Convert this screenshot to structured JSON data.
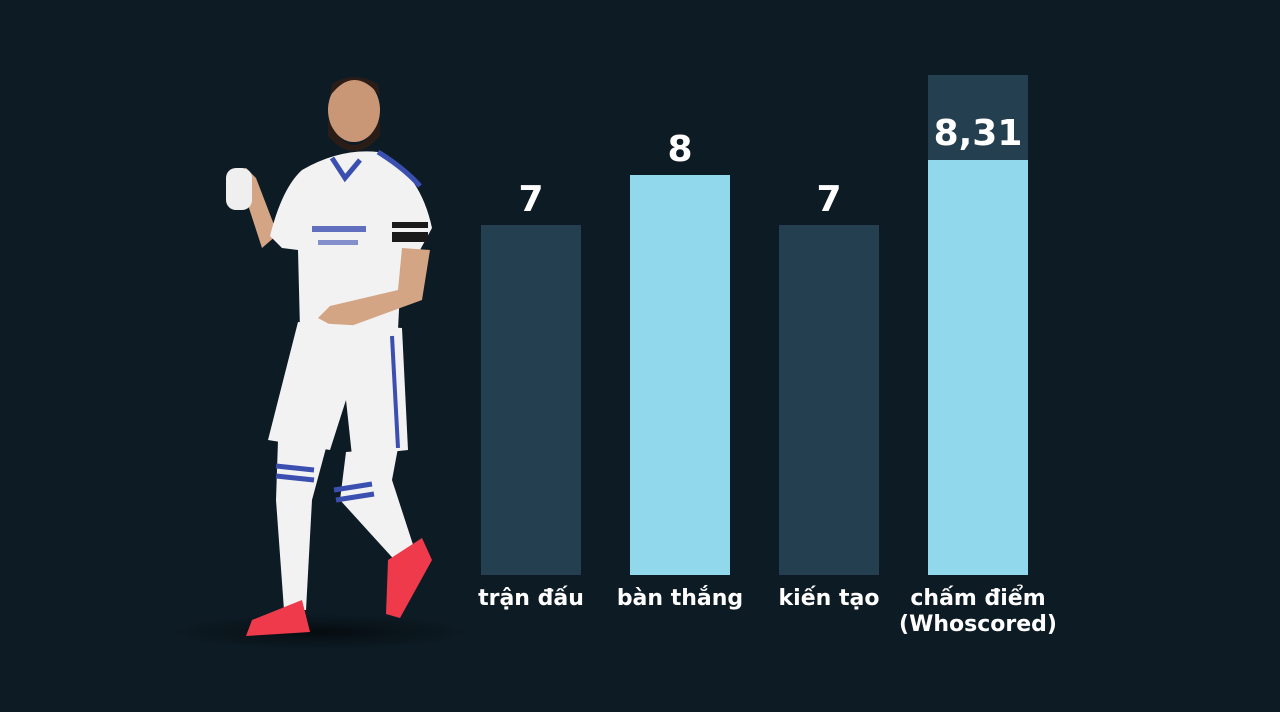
{
  "chart_data": {
    "type": "bar",
    "categories": [
      "trận đấu",
      "bàn thắng",
      "kiến tạo",
      "chấm điểm\n(Whoscored)"
    ],
    "values": [
      7,
      8,
      7,
      8.31
    ],
    "value_labels": [
      "7",
      "8",
      "7",
      "8,31"
    ],
    "colors": [
      "#243f50",
      "#92d8ec",
      "#243f50",
      "#92d8ec"
    ],
    "max_color": "#243f50",
    "max_fraction": 1.0,
    "title": "",
    "xlabel": "",
    "ylabel": "",
    "ylim": [
      0,
      10
    ],
    "grid": false
  },
  "photo": {
    "icon": "soccer-player-celebrating-icon",
    "kit_color": "#f2f2f2",
    "trim_color": "#3b4fb0",
    "boot_color": "#ee3a4a"
  }
}
